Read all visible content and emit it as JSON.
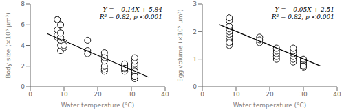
{
  "chart_data": [
    {
      "type": "scatter",
      "xlabel": "Water temperature (°C)",
      "ylabel": "Body size (×10⁵ μm³)",
      "xlim": [
        0,
        40
      ],
      "ylim": [
        0,
        8
      ],
      "xticks": [
        0,
        10,
        20,
        30,
        40
      ],
      "yticks": [
        0,
        2,
        4,
        6,
        8
      ],
      "annotations": [
        "Y = −0.14X + 5.84",
        "R² = 0.82, p <0.001"
      ],
      "series": [
        {
          "type": "scatter",
          "marker": "circle",
          "color": "black",
          "x": [
            8,
            8,
            8,
            8,
            8,
            9,
            9,
            9,
            9,
            9,
            9,
            10,
            10,
            10,
            17,
            17,
            17,
            22,
            22,
            22,
            22,
            22,
            22,
            22,
            28,
            28,
            28,
            28,
            28,
            31,
            31,
            31,
            31,
            31,
            31,
            31,
            31,
            31,
            31,
            31,
            31
          ],
          "values": [
            4.8,
            5.0,
            5.5,
            6.5,
            6.5,
            3.5,
            4.0,
            4.5,
            4.8,
            5.2,
            6.0,
            3.8,
            4.3,
            4.0,
            3.5,
            3.2,
            4.5,
            1.5,
            1.7,
            2.0,
            2.5,
            3.0,
            3.3,
            2.8,
            1.5,
            1.7,
            2.0,
            2.2,
            1.8,
            0.8,
            1.0,
            1.2,
            1.4,
            1.6,
            1.8,
            2.0,
            2.2,
            2.5,
            2.8,
            1.5,
            1.0
          ]
        },
        {
          "type": "line",
          "color": "black",
          "x": [
            5,
            35
          ],
          "values": [
            5.14,
            0.94
          ]
        }
      ]
    },
    {
      "type": "scatter",
      "xlabel": "Water temperature (°C)",
      "ylabel": "Egg volume (×10⁵ μm³)",
      "xlim": [
        0,
        40
      ],
      "ylim": [
        0,
        3
      ],
      "xticks": [
        0,
        10,
        20,
        30,
        40
      ],
      "yticks": [
        0,
        1,
        2,
        3
      ],
      "annotations": [
        "Y = −0.05X + 2.51",
        "R² = 0.82, p <0.001"
      ],
      "series": [
        {
          "type": "scatter",
          "marker": "circle",
          "color": "black",
          "x": [
            8,
            8,
            8,
            8,
            8,
            8,
            8,
            8,
            8,
            8,
            17,
            17,
            17,
            22,
            22,
            22,
            22,
            22,
            27,
            27,
            27,
            27,
            27,
            27,
            30,
            30,
            30,
            30,
            30,
            30,
            30
          ],
          "values": [
            1.5,
            1.7,
            1.8,
            1.9,
            2.0,
            2.1,
            2.2,
            2.4,
            2.5,
            1.6,
            1.6,
            1.8,
            1.7,
            1.0,
            1.1,
            1.2,
            1.3,
            1.4,
            0.9,
            1.0,
            1.1,
            1.2,
            1.3,
            1.4,
            0.7,
            0.8,
            0.85,
            0.9,
            0.95,
            1.0,
            0.75
          ]
        },
        {
          "type": "line",
          "color": "black",
          "x": [
            5,
            35
          ],
          "values": [
            2.26,
            0.76
          ]
        }
      ]
    }
  ]
}
